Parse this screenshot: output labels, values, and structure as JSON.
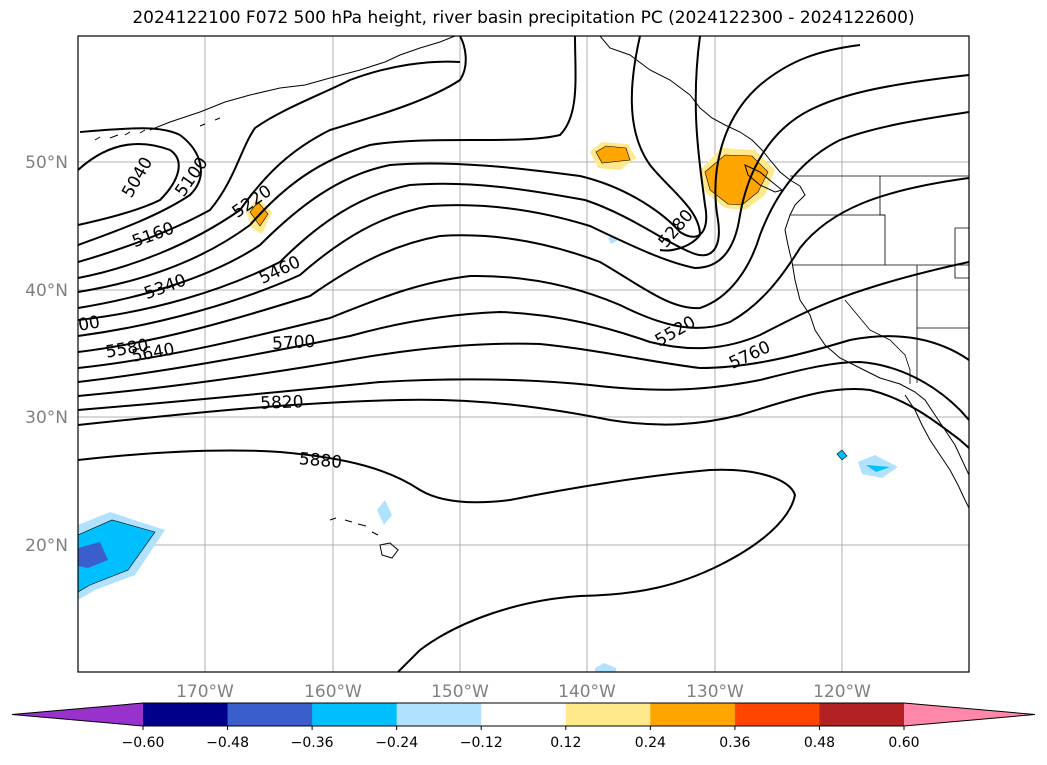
{
  "title": "2024122100 F072 500 hPa height, river basin precipitation PC (2024122300 - 2024122600)",
  "lat_labels": [
    "50°N",
    "40°N",
    "30°N",
    "20°N"
  ],
  "lon_labels": [
    "170°W",
    "160°W",
    "150°W",
    "140°W",
    "130°W",
    "120°W"
  ],
  "contour_labels": [
    "5040",
    "5100",
    "5160",
    "5220",
    "5280",
    "5340",
    "5460",
    "5520",
    "5580",
    "5640",
    "5700",
    "5760",
    "5820",
    "5880",
    "00"
  ],
  "colorbar": {
    "ticks": [
      "−0.60",
      "−0.48",
      "−0.36",
      "−0.24",
      "−0.12",
      "0.12",
      "0.24",
      "0.36",
      "0.48",
      "0.60"
    ],
    "colors": [
      "#9932cc",
      "#00008b",
      "#3a5fcd",
      "#00bfff",
      "#b0e2ff",
      "#ffffff",
      "#ffe98a",
      "#ffa500",
      "#ff4500",
      "#b22222",
      "#ff88aa"
    ]
  }
}
